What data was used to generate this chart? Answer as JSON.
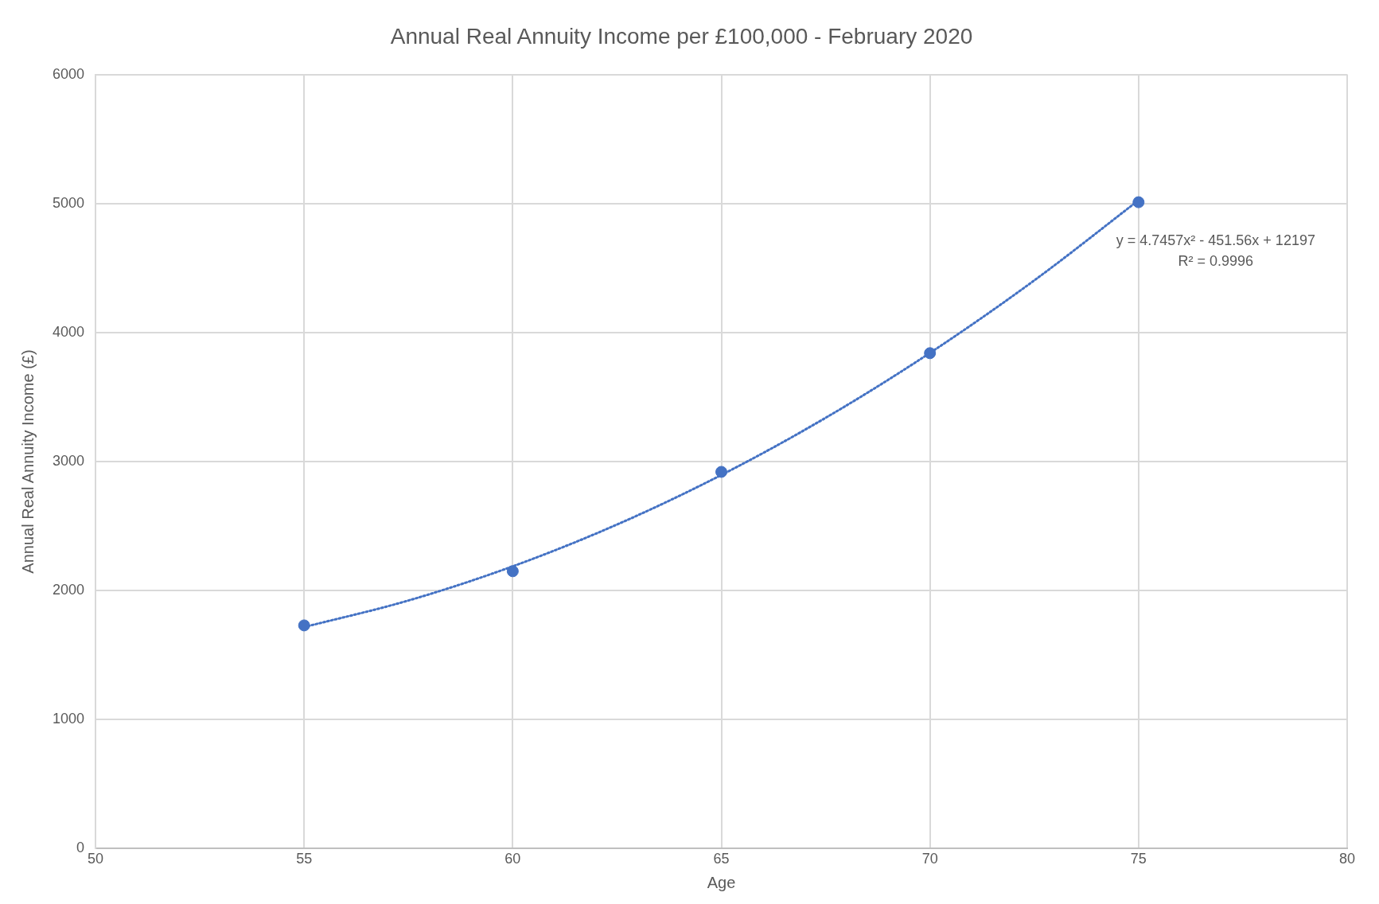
{
  "chart_data": {
    "type": "scatter",
    "title": "Annual Real Annuity Income per £100,000 - February 2020",
    "xlabel": "Age",
    "ylabel": "Annual Real Annuity Income (£)",
    "x": [
      55,
      60,
      65,
      70,
      75
    ],
    "series": [
      {
        "type": "scatter",
        "color": "#4472c4",
        "marker": "circle",
        "values": [
          1730,
          2150,
          2920,
          3840,
          5010
        ]
      },
      {
        "type": "line",
        "color": "#4472c4",
        "marker": "none",
        "line_style": "dotted",
        "x": [
          55,
          57.5,
          60,
          62.5,
          65,
          67.5,
          70,
          72.5,
          75
        ],
        "values": [
          1717,
          1923,
          2188,
          2512,
          2896,
          3339,
          3842,
          4404,
          5025
        ]
      }
    ],
    "annotations": [
      "y = 4.7457x² - 451.56x + 12197",
      "R² = 0.9996"
    ],
    "xlim": [
      50,
      80
    ],
    "xticks": [
      50,
      55,
      60,
      65,
      70,
      75,
      80
    ],
    "ylim": [
      0,
      6000
    ],
    "yticks": [
      0,
      1000,
      2000,
      3000,
      4000,
      5000,
      6000
    ],
    "grid": true,
    "legend": false
  }
}
